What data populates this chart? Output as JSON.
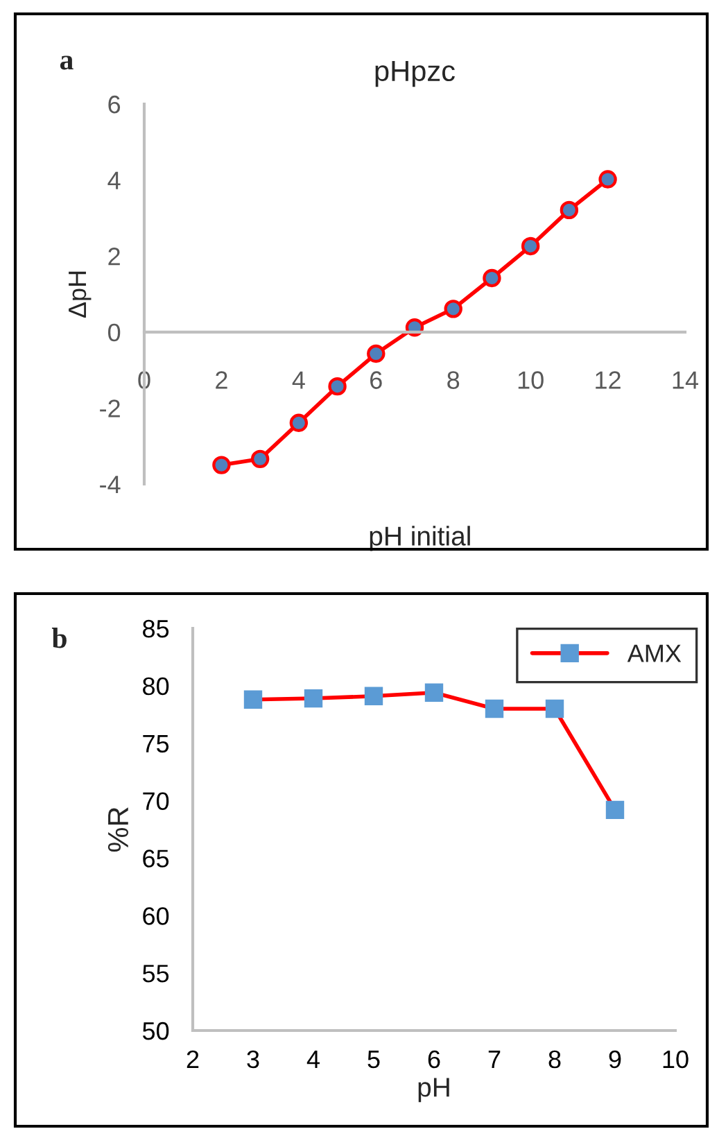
{
  "chart_data": [
    {
      "type": "line",
      "title": "pHpzc",
      "xlabel": "pH initial",
      "ylabel": "ΔpH",
      "annotations": [
        "a"
      ],
      "x": [
        2,
        3,
        4,
        5,
        6,
        7,
        8,
        9,
        10,
        11,
        12
      ],
      "series": [
        {
          "color": "#ff0000",
          "values": [
            -3.5,
            -3.34,
            -2.39,
            -1.43,
            -0.57,
            0.12,
            0.61,
            1.42,
            2.26,
            3.21,
            4.02
          ]
        }
      ],
      "xlim": [
        0,
        14
      ],
      "xticks": [
        0,
        2,
        4,
        6,
        8,
        10,
        12,
        14
      ],
      "ylim": [
        -4,
        6
      ],
      "yticks": [
        -4,
        -2,
        0,
        2,
        4,
        6
      ],
      "grid": false,
      "legend": false,
      "marker": "circle",
      "line_style": "solid"
    },
    {
      "type": "line",
      "xlabel": "pH",
      "ylabel": "%R",
      "annotations": [
        "b"
      ],
      "x": [
        3,
        4,
        5,
        6,
        7,
        8,
        9
      ],
      "series": [
        {
          "name": "AMX",
          "color": "#ff0000",
          "values": [
            78.8,
            78.9,
            79.1,
            79.4,
            78.0,
            78.0,
            69.2
          ]
        }
      ],
      "xlim": [
        2,
        10
      ],
      "xticks": [
        2,
        3,
        4,
        5,
        6,
        7,
        8,
        9,
        10
      ],
      "ylim": [
        50,
        85
      ],
      "yticks": [
        50,
        55,
        60,
        65,
        70,
        75,
        80,
        85
      ],
      "grid": false,
      "legend": "top right",
      "marker": "square",
      "line_style": "solid"
    }
  ]
}
